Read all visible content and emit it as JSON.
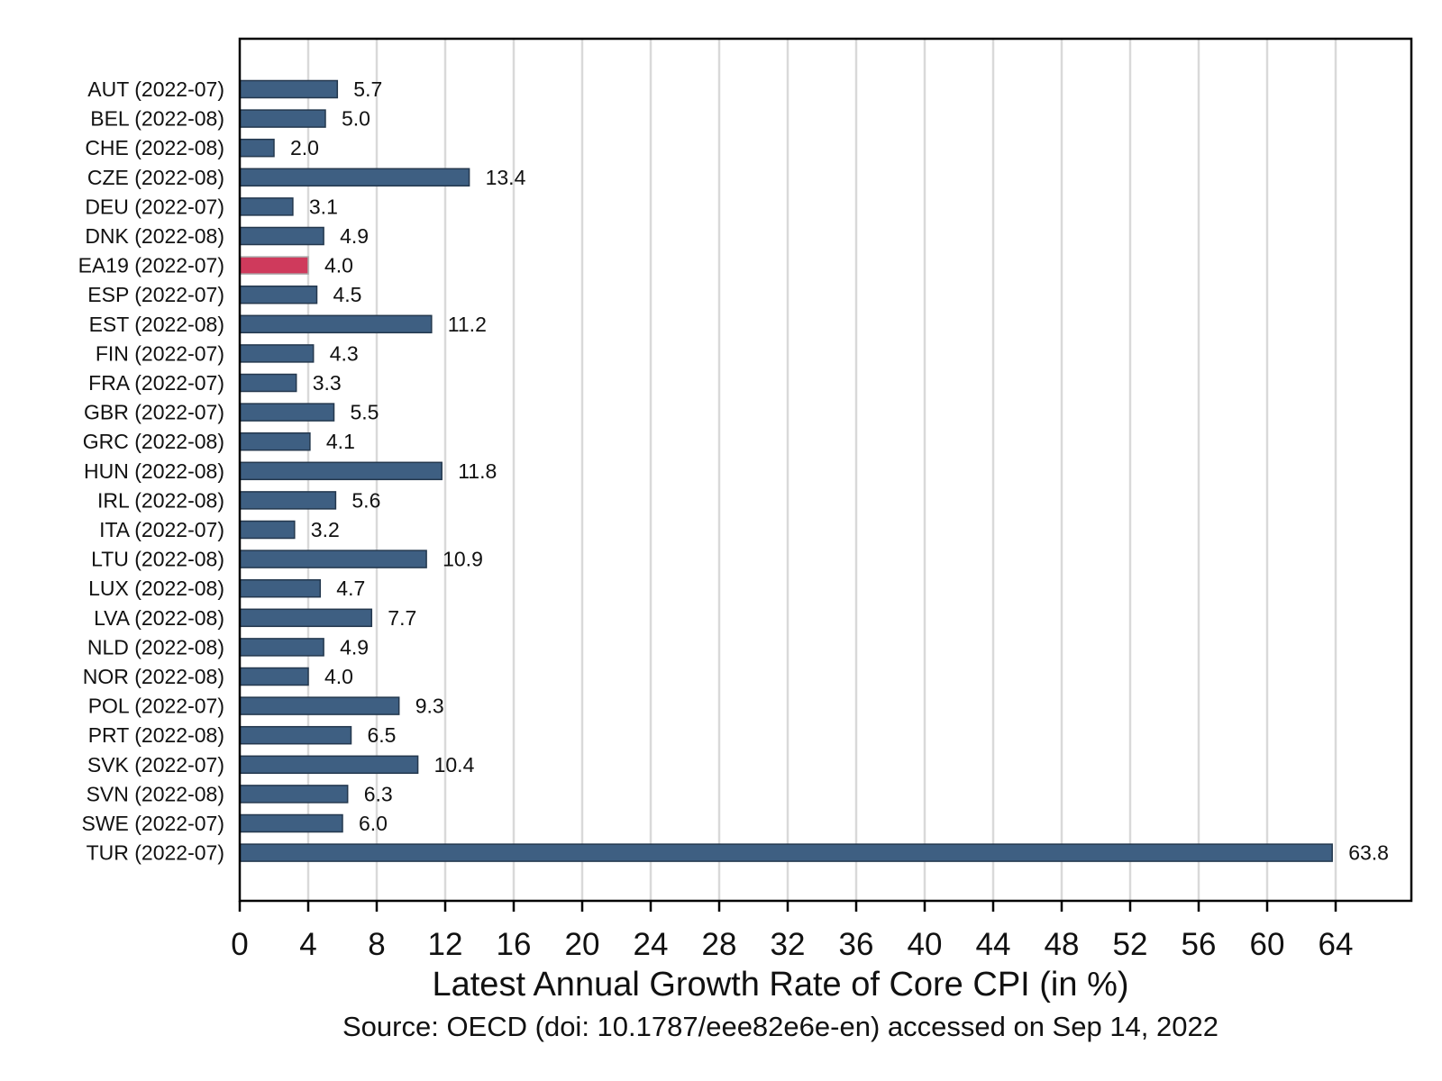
{
  "chart_data": {
    "type": "bar",
    "orientation": "horizontal",
    "categories": [
      "AUT (2022-07)",
      "BEL (2022-08)",
      "CHE (2022-08)",
      "CZE (2022-08)",
      "DEU (2022-07)",
      "DNK (2022-08)",
      "EA19 (2022-07)",
      "ESP (2022-07)",
      "EST (2022-08)",
      "FIN (2022-07)",
      "FRA (2022-07)",
      "GBR (2022-07)",
      "GRC (2022-08)",
      "HUN (2022-08)",
      "IRL (2022-08)",
      "ITA (2022-07)",
      "LTU (2022-08)",
      "LUX (2022-08)",
      "LVA (2022-08)",
      "NLD (2022-08)",
      "NOR (2022-08)",
      "POL (2022-07)",
      "PRT (2022-08)",
      "SVK (2022-07)",
      "SVN (2022-08)",
      "SWE (2022-07)",
      "TUR (2022-07)"
    ],
    "values": [
      5.7,
      5.0,
      2.0,
      13.4,
      3.1,
      4.9,
      4.0,
      4.5,
      11.2,
      4.3,
      3.3,
      5.5,
      4.1,
      11.8,
      5.6,
      3.2,
      10.9,
      4.7,
      7.7,
      4.9,
      4.0,
      9.3,
      6.5,
      10.4,
      6.3,
      6.0,
      63.8
    ],
    "value_labels": [
      "5.7",
      "5.0",
      "2.0",
      "13.4",
      "3.1",
      "4.9",
      "4.0",
      "4.5",
      "11.2",
      "4.3",
      "3.3",
      "5.5",
      "4.1",
      "11.8",
      "5.6",
      "3.2",
      "10.9",
      "4.7",
      "7.7",
      "4.9",
      "4.0",
      "9.3",
      "6.5",
      "10.4",
      "6.3",
      "6.0",
      "63.8"
    ],
    "highlight_category": "EA19 (2022-07)",
    "colors": {
      "bar": "#3e5f82",
      "highlight": "#cf3a5c",
      "grid": "#d9d9d9",
      "axis": "#000000"
    },
    "xlabel": "Latest Annual Growth Rate of Core CPI (in %)",
    "ylabel": "",
    "xlim": [
      0,
      68
    ],
    "xticks": [
      0,
      4,
      8,
      12,
      16,
      20,
      24,
      28,
      32,
      36,
      40,
      44,
      48,
      52,
      56,
      60,
      64
    ],
    "grid": true,
    "legend": false,
    "source_note": "Source: OECD (doi: 10.1787/eee82e6e-en) accessed on Sep 14, 2022"
  }
}
